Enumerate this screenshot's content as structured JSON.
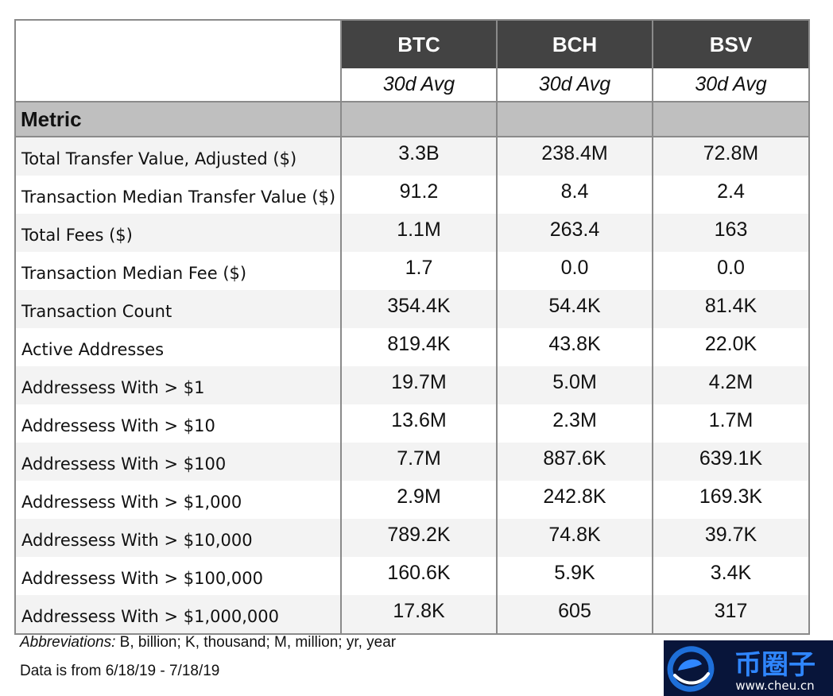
{
  "table": {
    "coins": [
      "BTC",
      "BCH",
      "BSV"
    ],
    "subheader": "30d Avg",
    "metric_header": "Metric",
    "rows": [
      {
        "label": "Total Transfer Value, Adjusted ($)",
        "values": [
          "3.3B",
          "238.4M",
          "72.8M"
        ]
      },
      {
        "label": "Transaction Median Transfer Value ($)",
        "values": [
          "91.2",
          "8.4",
          "2.4"
        ]
      },
      {
        "label": "Total Fees ($)",
        "values": [
          "1.1M",
          "263.4",
          "163"
        ]
      },
      {
        "label": "Transaction Median Fee ($)",
        "values": [
          "1.7",
          "0.0",
          "0.0"
        ]
      },
      {
        "label": "Transaction Count",
        "values": [
          "354.4K",
          "54.4K",
          "81.4K"
        ]
      },
      {
        "label": "Active Addresses",
        "values": [
          "819.4K",
          "43.8K",
          "22.0K"
        ]
      },
      {
        "label": "Addressess With > $1",
        "values": [
          "19.7M",
          "5.0M",
          "4.2M"
        ]
      },
      {
        "label": "Addressess With > $10",
        "values": [
          "13.6M",
          "2.3M",
          "1.7M"
        ]
      },
      {
        "label": "Addressess With > $100",
        "values": [
          "7.7M",
          "887.6K",
          "639.1K"
        ]
      },
      {
        "label": "Addressess With > $1,000",
        "values": [
          "2.9M",
          "242.8K",
          "169.3K"
        ]
      },
      {
        "label": "Addressess With > $10,000",
        "values": [
          "789.2K",
          "74.8K",
          "39.7K"
        ]
      },
      {
        "label": "Addressess With > $100,000",
        "values": [
          "160.6K",
          "5.9K",
          "3.4K"
        ]
      },
      {
        "label": "Addressess With > $1,000,000",
        "values": [
          "17.8K",
          "605",
          "317"
        ]
      }
    ]
  },
  "notes": {
    "abbreviations_key": "Abbreviations:",
    "abbreviations_text": " B, billion; K, thousand; M, million; yr, year",
    "date_range": "Data is from 6/18/19 - 7/18/19"
  },
  "watermark": {
    "name": "币圈子",
    "url": "www.cheu.cn",
    "icon": "e-logo-icon",
    "background": "#08153a",
    "accent": "#1e6fd9"
  }
}
